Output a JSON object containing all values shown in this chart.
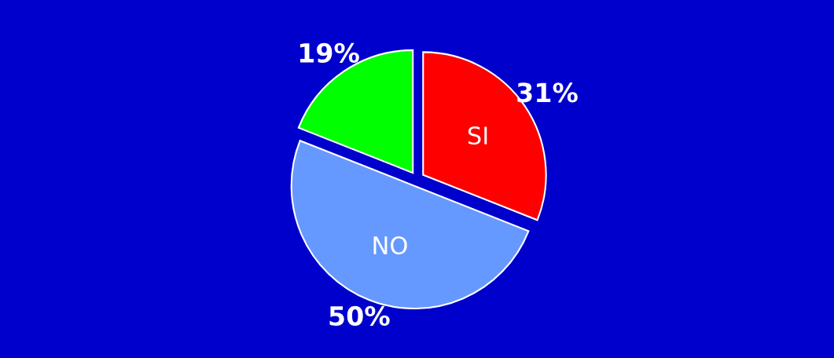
{
  "chart_data": {
    "type": "pie",
    "categories": [
      "SI",
      "NO",
      null
    ],
    "values": [
      31,
      50,
      19
    ],
    "colors": [
      "#ff0000",
      "#6699ff",
      "#00ff00"
    ],
    "value_labels": [
      "31%",
      "50%",
      "19%"
    ],
    "legend": false
  }
}
